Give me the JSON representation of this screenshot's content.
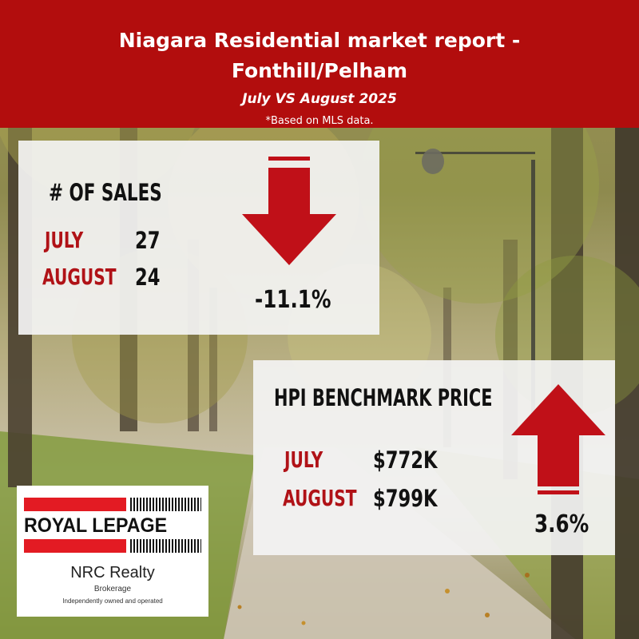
{
  "header": {
    "title_line1": "Niagara Residential market report -",
    "title_line2": "Fonthill/Pelham",
    "subtitle": "July VS August 2025"
  },
  "note": "*Based on MLS data.",
  "sales": {
    "heading": "# OF SALES",
    "rows": [
      {
        "label": "JULY",
        "value": "27"
      },
      {
        "label": "AUGUST",
        "value": "24"
      }
    ],
    "change": "-11.1%",
    "direction": "down"
  },
  "hpi": {
    "heading": "HPI BENCHMARK PRICE",
    "rows": [
      {
        "label": "JULY",
        "value": "$772K"
      },
      {
        "label": "AUGUST",
        "value": "$799K"
      }
    ],
    "change": "3.6%",
    "direction": "up"
  },
  "logo": {
    "brand": "ROYAL LEPAGE",
    "company": "NRC Realty",
    "type": "Brokerage",
    "tagline": "Independently owned and operated"
  },
  "colors": {
    "header_red": "#b20d0d",
    "arrow_red": "#c01018",
    "label_red": "#b01217",
    "panel_bg": "#f3f3f3"
  }
}
